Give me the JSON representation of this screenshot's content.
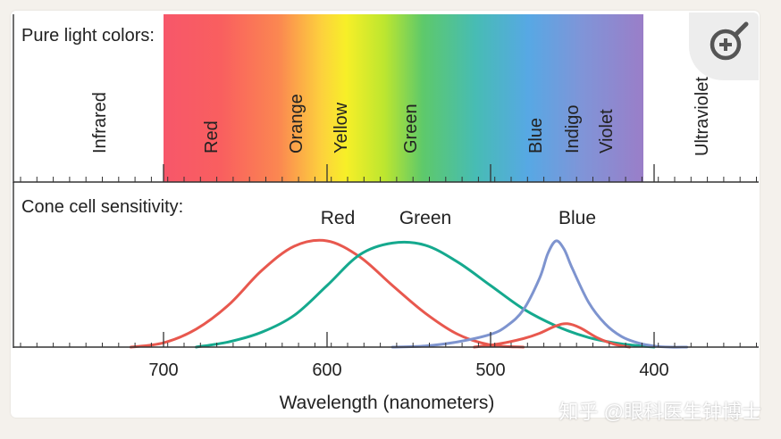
{
  "spectrum_panel": {
    "title": "Pure light colors:",
    "bands": [
      "Infrared",
      "Red",
      "Orange",
      "Yellow",
      "Green",
      "Blue",
      "Indigo",
      "Violet",
      "Ultraviolet"
    ]
  },
  "sensitivity_panel": {
    "title": "Cone cell sensitivity:",
    "curve_labels": [
      "Red",
      "Green",
      "Blue"
    ]
  },
  "colors": {
    "red_cone": "#e8584e",
    "green_cone": "#15a98e",
    "blue_cone": "#7e94cf"
  },
  "x_axis": {
    "label": "Wavelength (nanometers)",
    "ticks": [
      "700",
      "600",
      "500",
      "400"
    ],
    "tick_values": [
      700,
      600,
      500,
      400
    ]
  },
  "chart_data": {
    "type": "line",
    "xlabel": "Wavelength (nanometers)",
    "x_direction": "descending",
    "series": [
      {
        "name": "Red",
        "x": [
          720,
          700,
          680,
          660,
          640,
          620,
          600,
          580,
          560,
          540,
          520,
          500,
          480
        ],
        "y": [
          0.0,
          0.04,
          0.17,
          0.4,
          0.72,
          0.95,
          1.0,
          0.85,
          0.58,
          0.32,
          0.12,
          0.02,
          0.0
        ]
      },
      {
        "name": "Green",
        "x": [
          680,
          660,
          640,
          620,
          600,
          580,
          560,
          540,
          520,
          500,
          480,
          460,
          440,
          420,
          400
        ],
        "y": [
          0.0,
          0.05,
          0.14,
          0.3,
          0.58,
          0.87,
          0.98,
          0.96,
          0.8,
          0.58,
          0.36,
          0.2,
          0.09,
          0.03,
          0.0
        ]
      },
      {
        "name": "Red",
        "x": [
          510,
          495,
          480,
          470,
          460,
          453,
          445,
          435,
          425,
          415
        ],
        "y": [
          0.0,
          0.03,
          0.08,
          0.13,
          0.2,
          0.22,
          0.18,
          0.09,
          0.03,
          0.0
        ]
      },
      {
        "name": "Blue",
        "x": [
          560,
          540,
          520,
          500,
          490,
          480,
          470,
          465,
          460,
          455,
          450,
          440,
          430,
          420,
          410,
          400,
          390,
          380
        ],
        "y": [
          0.0,
          0.01,
          0.05,
          0.12,
          0.2,
          0.35,
          0.65,
          0.88,
          1.0,
          0.92,
          0.74,
          0.42,
          0.22,
          0.1,
          0.04,
          0.01,
          0.0,
          0.0
        ]
      }
    ]
  },
  "watermark": "知乎 @眼科医生钟博士"
}
